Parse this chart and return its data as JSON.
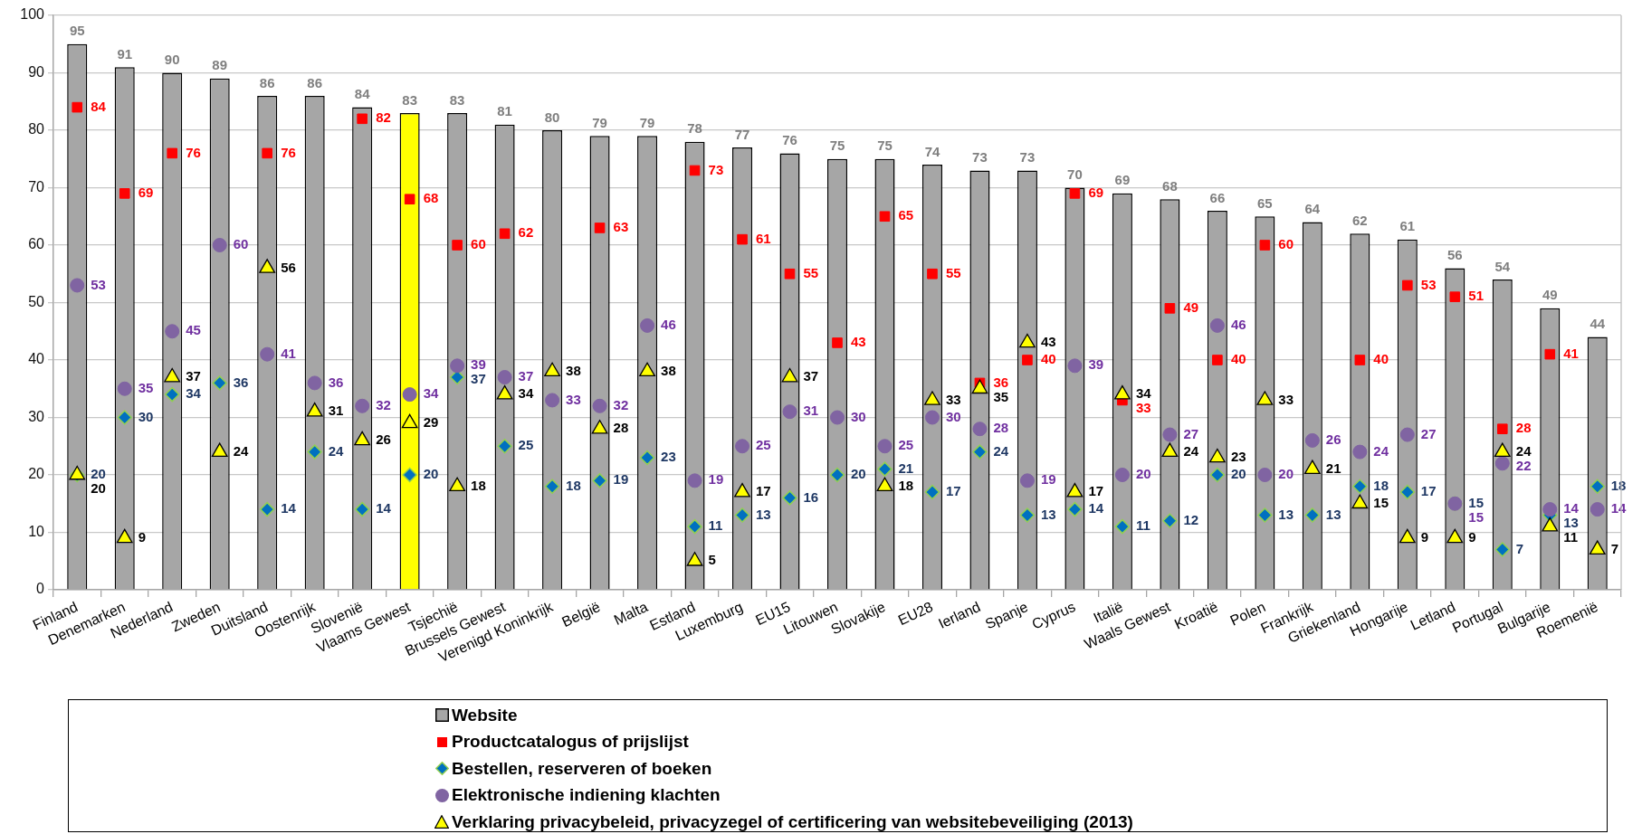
{
  "chart_data": {
    "type": "bar",
    "categories": [
      "Finland",
      "Denemarken",
      "Nederland",
      "Zweden",
      "Duitsland",
      "Oostenrijk",
      "Slovenië",
      "Vlaams Gewest",
      "Tsjechië",
      "Brussels Gewest",
      "Verenigd Koninkrijk",
      "België",
      "Malta",
      "Estland",
      "Luxemburg",
      "EU15",
      "Litouwen",
      "Slovakije",
      "EU28",
      "Ierland",
      "Spanje",
      "Cyprus",
      "Italië",
      "Waals Gewest",
      "Kroatië",
      "Polen",
      "Frankrijk",
      "Griekenland",
      "Hongarije",
      "Letland",
      "Portugal",
      "Bulgarije",
      "Roemenië"
    ],
    "series": [
      {
        "name": "Website",
        "colors": [
          "#a6a6a6",
          "#a6a6a6",
          "#a6a6a6",
          "#a6a6a6",
          "#a6a6a6",
          "#a6a6a6",
          "#a6a6a6",
          "#ffff00",
          "#a6a6a6",
          "#a6a6a6",
          "#a6a6a6",
          "#a6a6a6",
          "#a6a6a6",
          "#a6a6a6",
          "#a6a6a6",
          "#a6a6a6",
          "#a6a6a6",
          "#a6a6a6",
          "#a6a6a6",
          "#a6a6a6",
          "#a6a6a6",
          "#a6a6a6",
          "#a6a6a6",
          "#a6a6a6",
          "#a6a6a6",
          "#a6a6a6",
          "#a6a6a6",
          "#a6a6a6",
          "#a6a6a6",
          "#a6a6a6",
          "#a6a6a6",
          "#a6a6a6",
          "#a6a6a6"
        ],
        "values": [
          95,
          91,
          90,
          89,
          86,
          86,
          84,
          83,
          83,
          81,
          80,
          79,
          79,
          78,
          77,
          76,
          75,
          75,
          74,
          73,
          73,
          70,
          69,
          68,
          66,
          65,
          64,
          62,
          61,
          56,
          54,
          49,
          44
        ]
      },
      {
        "name": "Productcatalogus of prijslijst",
        "type": "scatter",
        "marker": "square",
        "color": "#ff0000",
        "x": [
          "Finland",
          "Denemarken",
          "Nederland",
          "Zweden",
          "Duitsland",
          "Oostenrijk",
          "Slovenië",
          "Vlaams Gewest",
          "Tsjechië",
          "Brussels Gewest",
          "Verenigd Koninkrijk",
          "België",
          "Malta",
          "Estland",
          "Luxemburg",
          "EU15",
          "Litouwen",
          "Slovakije",
          "EU28",
          "Ierland",
          "Spanje",
          "Cyprus",
          "Italië",
          "Waals Gewest",
          "Kroatië",
          "Polen",
          "Frankrijk",
          "Griekenland",
          "Hongarije",
          "Letland",
          "Portugal",
          "Bulgarije",
          "Roemenië"
        ],
        "values": [
          84,
          69,
          76,
          null,
          76,
          null,
          82,
          68,
          60,
          62,
          null,
          63,
          null,
          73,
          61,
          55,
          43,
          65,
          55,
          36,
          40,
          69,
          33,
          49,
          40,
          60,
          null,
          40,
          53,
          51,
          28,
          41,
          null
        ]
      },
      {
        "name": "Bestellen, reserveren of boeken",
        "type": "scatter",
        "marker": "diamond",
        "color": "#0070c0",
        "x": [
          "Finland",
          "Denemarken",
          "Nederland",
          "Zweden",
          "Duitsland",
          "Oostenrijk",
          "Slovenië",
          "Vlaams Gewest",
          "Tsjechië",
          "Brussels Gewest",
          "Verenigd Koninkrijk",
          "België",
          "Malta",
          "Estland",
          "Luxemburg",
          "EU15",
          "Litouwen",
          "Slovakije",
          "EU28",
          "Ierland",
          "Spanje",
          "Cyprus",
          "Italië",
          "Waals Gewest",
          "Kroatië",
          "Polen",
          "Frankrijk",
          "Griekenland",
          "Hongarije",
          "Letland",
          "Portugal",
          "Bulgarije",
          "Roemenië"
        ],
        "values": [
          20,
          30,
          34,
          36,
          14,
          24,
          14,
          20,
          37,
          25,
          18,
          19,
          23,
          11,
          13,
          16,
          20,
          21,
          17,
          24,
          13,
          14,
          11,
          12,
          20,
          13,
          13,
          18,
          17,
          15,
          7,
          13,
          18
        ]
      },
      {
        "name": "Elektronische indiening klachten",
        "type": "scatter",
        "marker": "circle",
        "color": "#8064a2",
        "x": [
          "Finland",
          "Denemarken",
          "Nederland",
          "Zweden",
          "Duitsland",
          "Oostenrijk",
          "Slovenië",
          "Vlaams Gewest",
          "Tsjechië",
          "Brussels Gewest",
          "Verenigd Koninkrijk",
          "België",
          "Malta",
          "Estland",
          "Luxemburg",
          "EU15",
          "Litouwen",
          "Slovakije",
          "EU28",
          "Ierland",
          "Spanje",
          "Cyprus",
          "Italië",
          "Waals Gewest",
          "Kroatië",
          "Polen",
          "Frankrijk",
          "Griekenland",
          "Hongarije",
          "Letland",
          "Portugal",
          "Bulgarije",
          "Roemenië"
        ],
        "values": [
          53,
          35,
          45,
          60,
          41,
          36,
          32,
          34,
          39,
          37,
          33,
          32,
          46,
          19,
          25,
          31,
          30,
          25,
          30,
          28,
          19,
          39,
          20,
          27,
          46,
          20,
          26,
          24,
          27,
          15,
          22,
          14,
          14
        ]
      },
      {
        "name": "Verklaring privacybeleid, privacyzegel of certificering van websitebeveiliging (2013)",
        "type": "scatter",
        "marker": "triangle",
        "color": "#ffff00",
        "x": [
          "Finland",
          "Denemarken",
          "Nederland",
          "Zweden",
          "Duitsland",
          "Oostenrijk",
          "Slovenië",
          "Vlaams Gewest",
          "Tsjechië",
          "Brussels Gewest",
          "Verenigd Koninkrijk",
          "België",
          "Malta",
          "Estland",
          "Luxemburg",
          "EU15",
          "Litouwen",
          "Slovakije",
          "EU28",
          "Ierland",
          "Spanje",
          "Cyprus",
          "Italië",
          "Waals Gewest",
          "Kroatië",
          "Polen",
          "Frankrijk",
          "Griekenland",
          "Hongarije",
          "Letland",
          "Portugal",
          "Bulgarije",
          "Roemenië"
        ],
        "values": [
          20,
          9,
          37,
          24,
          56,
          31,
          26,
          29,
          18,
          34,
          38,
          28,
          38,
          5,
          17,
          37,
          null,
          18,
          33,
          35,
          43,
          17,
          34,
          24,
          23,
          33,
          21,
          15,
          9,
          9,
          24,
          11,
          7
        ]
      }
    ],
    "ylim": [
      0,
      100
    ],
    "yticks": [
      0,
      10,
      20,
      30,
      40,
      50,
      60,
      70,
      80,
      90,
      100
    ],
    "grid": "y",
    "legend": "bottom",
    "data_labels": true
  }
}
